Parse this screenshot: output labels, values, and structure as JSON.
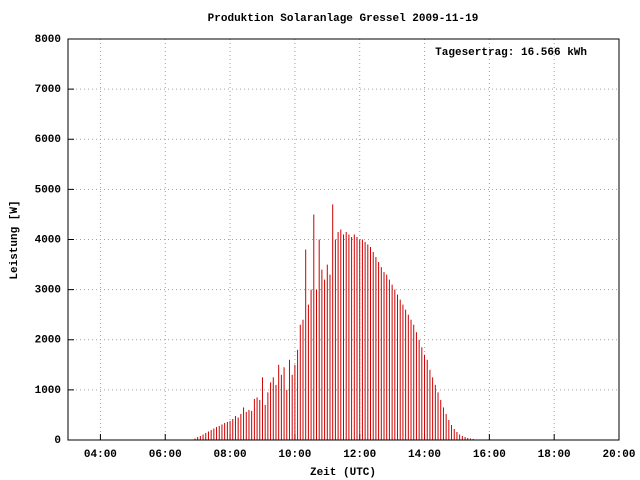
{
  "chart_data": {
    "type": "impulse",
    "title": "Produktion Solaranlage Gressel 2009-11-19",
    "annotation": "Tagesertrag: 16.566 kWh",
    "x_label": "Zeit (UTC)",
    "y_label": "Leistung [W]",
    "color": "#cc0000",
    "grid": true,
    "xlim": [
      180,
      1200
    ],
    "xticks": [
      {
        "value": 240,
        "label": "04:00"
      },
      {
        "value": 360,
        "label": "06:00"
      },
      {
        "value": 480,
        "label": "08:00"
      },
      {
        "value": 600,
        "label": "10:00"
      },
      {
        "value": 720,
        "label": "12:00"
      },
      {
        "value": 840,
        "label": "14:00"
      },
      {
        "value": 960,
        "label": "16:00"
      },
      {
        "value": 1080,
        "label": "18:00"
      },
      {
        "value": 1200,
        "label": "20:00"
      }
    ],
    "ylim": [
      0,
      8000
    ],
    "yticks": [
      0,
      1000,
      2000,
      3000,
      4000,
      5000,
      6000,
      7000,
      8000
    ],
    "x": [
      410,
      415,
      420,
      425,
      430,
      435,
      440,
      445,
      450,
      455,
      460,
      465,
      470,
      475,
      480,
      485,
      490,
      495,
      500,
      505,
      510,
      515,
      520,
      525,
      530,
      535,
      540,
      545,
      550,
      555,
      560,
      565,
      570,
      575,
      580,
      585,
      590,
      595,
      600,
      605,
      610,
      615,
      620,
      625,
      630,
      635,
      640,
      645,
      650,
      655,
      660,
      665,
      670,
      675,
      680,
      685,
      690,
      695,
      700,
      705,
      710,
      715,
      720,
      725,
      730,
      735,
      740,
      745,
      750,
      755,
      760,
      765,
      770,
      775,
      780,
      785,
      790,
      795,
      800,
      805,
      810,
      815,
      820,
      825,
      830,
      835,
      840,
      845,
      850,
      855,
      860,
      865,
      870,
      875,
      880,
      885,
      890,
      895,
      900,
      905,
      910,
      915,
      920,
      925,
      930,
      935
    ],
    "values": [
      10,
      30,
      60,
      80,
      110,
      140,
      170,
      200,
      230,
      260,
      280,
      310,
      340,
      360,
      380,
      420,
      480,
      450,
      520,
      650,
      560,
      600,
      580,
      820,
      850,
      800,
      1250,
      700,
      950,
      1150,
      1250,
      1100,
      1500,
      1300,
      1450,
      1000,
      1600,
      1300,
      1500,
      1800,
      2300,
      2400,
      3800,
      2700,
      3000,
      4500,
      3000,
      4000,
      3400,
      3200,
      3500,
      3300,
      4700,
      4000,
      4150,
      4200,
      4100,
      4150,
      4100,
      4050,
      4100,
      4050,
      4000,
      4000,
      3950,
      3900,
      3850,
      3750,
      3650,
      3550,
      3450,
      3350,
      3300,
      3200,
      3100,
      3000,
      2900,
      2800,
      2700,
      2600,
      2500,
      2400,
      2300,
      2150,
      2000,
      1850,
      1700,
      1600,
      1400,
      1250,
      1100,
      950,
      800,
      650,
      520,
      400,
      300,
      220,
      160,
      110,
      80,
      60,
      40,
      30,
      20,
      10
    ]
  }
}
